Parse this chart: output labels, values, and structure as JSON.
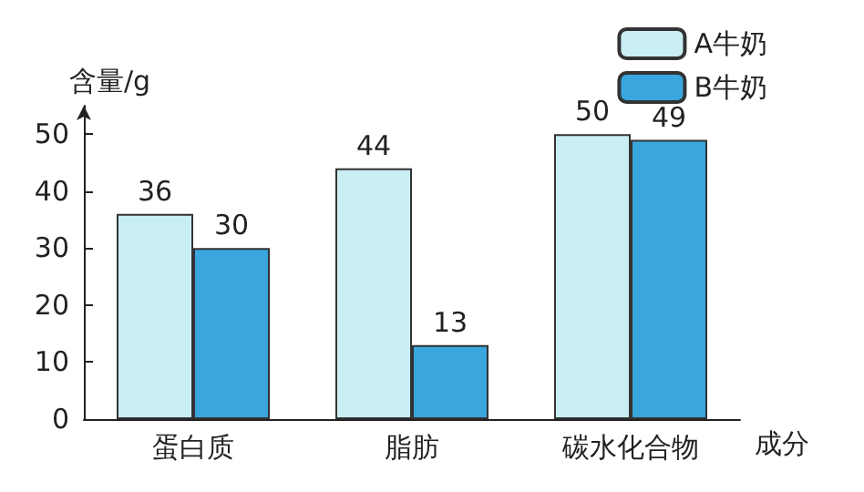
{
  "chart_data": {
    "type": "bar",
    "categories": [
      "蛋白质",
      "脂肪",
      "碳水化合物"
    ],
    "series": [
      {
        "name": "A牛奶",
        "color": "#c9eef4",
        "values": [
          36,
          44,
          50
        ]
      },
      {
        "name": "B牛奶",
        "color": "#3aa6de",
        "values": [
          30,
          13,
          49
        ]
      }
    ],
    "ylabel": "含量/g",
    "xlabel": "成分",
    "ylim": [
      0,
      55
    ],
    "yticks": [
      0,
      10,
      20,
      30,
      40,
      50
    ],
    "data_labels": true,
    "legend": "top right",
    "grid": false
  }
}
